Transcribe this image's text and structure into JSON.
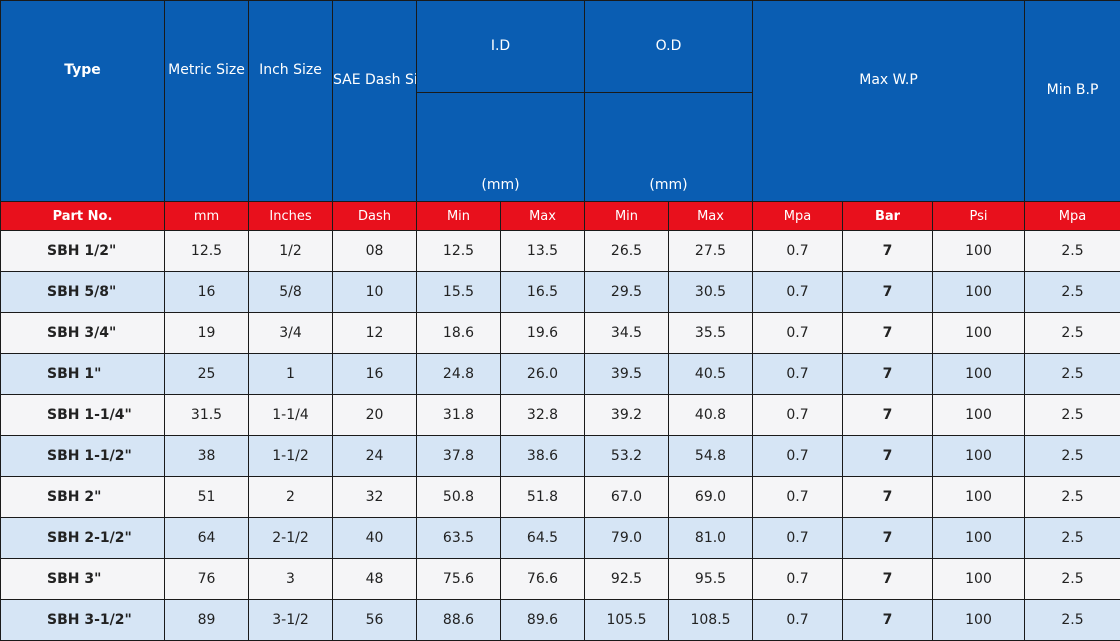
{
  "header": {
    "type": "Type",
    "metric_size": "Metric Size",
    "inch_size": "Inch Size",
    "sae_dash_size": "SAE Dash Size",
    "id": "I.D",
    "od": "O.D",
    "id_unit": "(mm)",
    "od_unit": "(mm)",
    "max_wp": "Max W.P",
    "min_bp": "Min B.P"
  },
  "subheader": {
    "part_no": "Part No.",
    "mm": "mm",
    "inches": "Inches",
    "dash": "Dash",
    "id_min": "Min",
    "id_max": "Max",
    "od_min": "Min",
    "od_max": "Max",
    "wp_mpa": "Mpa",
    "wp_bar": "Bar",
    "wp_psi": "Psi",
    "bp_mpa": "Mpa"
  },
  "rows": [
    {
      "part": "SBH 1/2\"",
      "mm": "12.5",
      "inch": "1/2",
      "dash": "08",
      "id_min": "12.5",
      "id_max": "13.5",
      "od_min": "26.5",
      "od_max": "27.5",
      "mpa": "0.7",
      "bar": "7",
      "psi": "100",
      "bp": "2.5"
    },
    {
      "part": "SBH 5/8\"",
      "mm": "16",
      "inch": "5/8",
      "dash": "10",
      "id_min": "15.5",
      "id_max": "16.5",
      "od_min": "29.5",
      "od_max": "30.5",
      "mpa": "0.7",
      "bar": "7",
      "psi": "100",
      "bp": "2.5"
    },
    {
      "part": "SBH 3/4\"",
      "mm": "19",
      "inch": "3/4",
      "dash": "12",
      "id_min": "18.6",
      "id_max": "19.6",
      "od_min": "34.5",
      "od_max": "35.5",
      "mpa": "0.7",
      "bar": "7",
      "psi": "100",
      "bp": "2.5"
    },
    {
      "part": "SBH 1\"",
      "mm": "25",
      "inch": "1",
      "dash": "16",
      "id_min": "24.8",
      "id_max": "26.0",
      "od_min": "39.5",
      "od_max": "40.5",
      "mpa": "0.7",
      "bar": "7",
      "psi": "100",
      "bp": "2.5"
    },
    {
      "part": "SBH 1-1/4\"",
      "mm": "31.5",
      "inch": "1-1/4",
      "dash": "20",
      "id_min": "31.8",
      "id_max": "32.8",
      "od_min": "39.2",
      "od_max": "40.8",
      "mpa": "0.7",
      "bar": "7",
      "psi": "100",
      "bp": "2.5"
    },
    {
      "part": "SBH 1-1/2\"",
      "mm": "38",
      "inch": "1-1/2",
      "dash": "24",
      "id_min": "37.8",
      "id_max": "38.6",
      "od_min": "53.2",
      "od_max": "54.8",
      "mpa": "0.7",
      "bar": "7",
      "psi": "100",
      "bp": "2.5"
    },
    {
      "part": "SBH 2\"",
      "mm": "51",
      "inch": "2",
      "dash": "32",
      "id_min": "50.8",
      "id_max": "51.8",
      "od_min": "67.0",
      "od_max": "69.0",
      "mpa": "0.7",
      "bar": "7",
      "psi": "100",
      "bp": "2.5"
    },
    {
      "part": "SBH 2-1/2\"",
      "mm": "64",
      "inch": "2-1/2",
      "dash": "40",
      "id_min": "63.5",
      "id_max": "64.5",
      "od_min": "79.0",
      "od_max": "81.0",
      "mpa": "0.7",
      "bar": "7",
      "psi": "100",
      "bp": "2.5"
    },
    {
      "part": "SBH 3\"",
      "mm": "76",
      "inch": "3",
      "dash": "48",
      "id_min": "75.6",
      "id_max": "76.6",
      "od_min": "92.5",
      "od_max": "95.5",
      "mpa": "0.7",
      "bar": "7",
      "psi": "100",
      "bp": "2.5"
    },
    {
      "part": "SBH 3-1/2\"",
      "mm": "89",
      "inch": "3-1/2",
      "dash": "56",
      "id_min": "88.6",
      "id_max": "89.6",
      "od_min": "105.5",
      "od_max": "108.5",
      "mpa": "0.7",
      "bar": "7",
      "psi": "100",
      "bp": "2.5"
    }
  ],
  "colors": {
    "header_blue": "#0a5db2",
    "subheader_red": "#e8101c",
    "row_light": "#f5f5f7",
    "row_blue": "#d6e5f5"
  }
}
